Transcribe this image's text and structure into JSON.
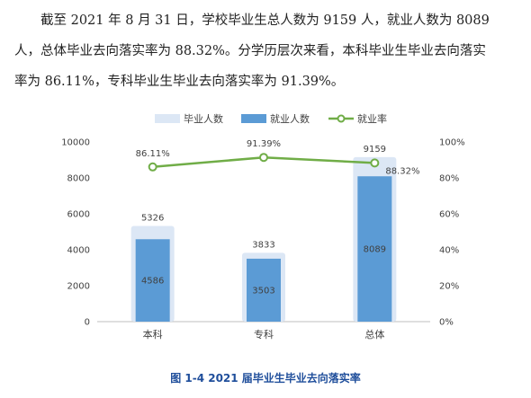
{
  "paragraph": {
    "line1": "　　截至 2021 年 8 月 31 日，学校毕业生总人数为 9159 人，就业人数为 8089",
    "line2": "人，总体毕业去向落实率为 88.32%。分学历层次来看，本科毕业生毕业去向落实",
    "line3": "率为 86.11%，专科毕业生毕业去向落实率为 91.39%。"
  },
  "caption": "图 1-4  2021 届毕业生毕业去向落实率",
  "chart_data": {
    "type": "bar",
    "categories": [
      "本科",
      "专科",
      "总体"
    ],
    "series": [
      {
        "name": "毕业人数",
        "kind": "bar",
        "axis": "left",
        "values": [
          5326,
          3833,
          9159
        ],
        "labels": [
          "5326",
          "3833",
          "9159"
        ],
        "color": "#dce7f5"
      },
      {
        "name": "就业人数",
        "kind": "bar",
        "axis": "left",
        "values": [
          4586,
          3503,
          8089
        ],
        "labels": [
          "4586",
          "3503",
          "8089"
        ],
        "color": "#5b9bd5"
      },
      {
        "name": "就业率",
        "kind": "line",
        "axis": "right",
        "values": [
          86.11,
          91.39,
          88.32
        ],
        "labels": [
          "86.11%",
          "91.39%",
          "88.32%"
        ],
        "color": "#70ad47"
      }
    ],
    "y_left": {
      "min": 0,
      "max": 10000,
      "ticks": [
        "0",
        "2000",
        "4000",
        "6000",
        "8000",
        "10000"
      ]
    },
    "y_right": {
      "min": 0,
      "max": 100,
      "ticks": [
        "0%",
        "20%",
        "40%",
        "60%",
        "80%",
        "100%"
      ]
    },
    "legend_position": "top-center",
    "grid": false
  }
}
